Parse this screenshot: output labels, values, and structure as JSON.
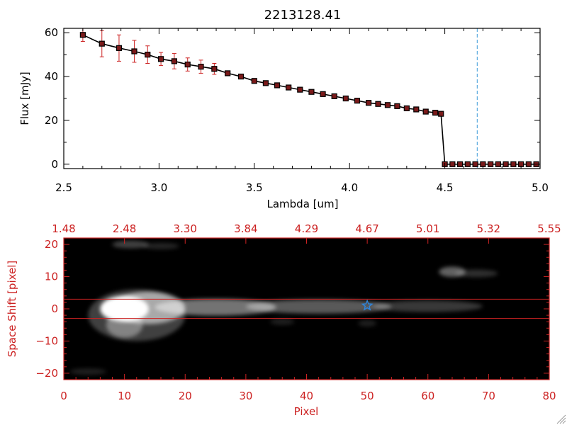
{
  "colors": {
    "red": "#cc2222",
    "black": "#000000",
    "marker": "#7a1a1a",
    "vline": "#3a9ad9",
    "star": "#2e86de",
    "image_bg": "#000000"
  },
  "chart_data": [
    {
      "type": "line",
      "title": "2213128.41",
      "xlabel": "Lambda [um]",
      "ylabel": "Flux [mJy]",
      "xlim": [
        2.5,
        5.0
      ],
      "ylim": [
        -2,
        62
      ],
      "xticks": [
        "2.5",
        "3.0",
        "3.5",
        "4.0",
        "4.5",
        "5.0"
      ],
      "xtick_values": [
        2.5,
        3.0,
        3.5,
        4.0,
        4.5,
        5.0
      ],
      "yticks": [
        "0",
        "20",
        "40",
        "60"
      ],
      "ytick_values": [
        0,
        20,
        40,
        60
      ],
      "vline_x": 4.67,
      "series": [
        {
          "name": "flux",
          "x": [
            2.6,
            2.7,
            2.79,
            2.87,
            2.94,
            3.01,
            3.08,
            3.15,
            3.22,
            3.29,
            3.36,
            3.43,
            3.5,
            3.56,
            3.62,
            3.68,
            3.74,
            3.8,
            3.86,
            3.92,
            3.98,
            4.04,
            4.1,
            4.15,
            4.2,
            4.25,
            4.3,
            4.35,
            4.4,
            4.45,
            4.48,
            4.5,
            4.54,
            4.58,
            4.62,
            4.66,
            4.7,
            4.74,
            4.78,
            4.82,
            4.86,
            4.9,
            4.94,
            4.98
          ],
          "y": [
            59,
            55,
            53,
            51.5,
            50,
            48,
            47,
            45.5,
            44.5,
            43.5,
            41.5,
            40,
            38,
            37,
            36,
            35,
            34,
            33,
            32,
            31,
            30,
            29,
            28,
            27.5,
            27,
            26.5,
            25.5,
            25,
            24,
            23.5,
            23,
            0,
            0,
            0,
            0,
            0,
            0,
            0,
            0,
            0,
            0,
            0,
            0,
            0
          ],
          "yerr": [
            3,
            6,
            6,
            5,
            4,
            3,
            3.5,
            3,
            3,
            2.5,
            1,
            1,
            1,
            1,
            1,
            1,
            1,
            1,
            1,
            1,
            1,
            1,
            1,
            1,
            1,
            1,
            1,
            1,
            1,
            1,
            1,
            0,
            0,
            0,
            0,
            0,
            0,
            0,
            0,
            0,
            0,
            0,
            0,
            0
          ]
        }
      ]
    },
    {
      "type": "heatmap",
      "title": "",
      "xlabel": "Pixel",
      "ylabel": "Space Shift [pixel]",
      "xlim": [
        0,
        80
      ],
      "ylim": [
        -22,
        22
      ],
      "xticks": [
        "0",
        "10",
        "20",
        "30",
        "40",
        "50",
        "60",
        "70",
        "80"
      ],
      "xtick_values": [
        0,
        10,
        20,
        30,
        40,
        50,
        60,
        70,
        80
      ],
      "yticks": [
        "−20",
        "−10",
        "0",
        "10",
        "20"
      ],
      "ytick_values": [
        -20,
        -10,
        0,
        10,
        20
      ],
      "top_ticks": [
        "1.48",
        "2.48",
        "3.30",
        "3.84",
        "4.29",
        "4.67",
        "5.01",
        "5.32",
        "5.55"
      ],
      "top_tick_values": [
        0,
        10,
        20,
        30,
        40,
        50,
        60,
        70,
        80
      ],
      "hlines": [
        3,
        -3
      ],
      "star": {
        "x": 50,
        "y": 1
      },
      "blobs": [
        {
          "x": 10,
          "y": 0,
          "sx": 4,
          "sy": 4,
          "a": 1.0
        },
        {
          "x": 14,
          "y": 0.3,
          "sx": 6,
          "sy": 5,
          "a": 0.55
        },
        {
          "x": 25,
          "y": 0.5,
          "sx": 10,
          "sy": 2.6,
          "a": 0.45
        },
        {
          "x": 42,
          "y": 0.7,
          "sx": 12,
          "sy": 2.2,
          "a": 0.35
        },
        {
          "x": 60,
          "y": 0.8,
          "sx": 9,
          "sy": 1.8,
          "a": 0.22
        },
        {
          "x": 10,
          "y": -5,
          "sx": 3,
          "sy": 4,
          "a": 0.35
        },
        {
          "x": 12,
          "y": -2,
          "sx": 8,
          "sy": 8,
          "a": 0.25
        },
        {
          "x": 64,
          "y": 11.5,
          "sx": 2.2,
          "sy": 1.6,
          "a": 0.38
        },
        {
          "x": 68,
          "y": 11,
          "sx": 3.5,
          "sy": 1.2,
          "a": 0.18
        },
        {
          "x": 11,
          "y": 20,
          "sx": 3,
          "sy": 1.2,
          "a": 0.25
        },
        {
          "x": 16,
          "y": 19.5,
          "sx": 3,
          "sy": 1,
          "a": 0.14
        },
        {
          "x": 4,
          "y": -19.5,
          "sx": 3,
          "sy": 1,
          "a": 0.12
        },
        {
          "x": 36,
          "y": -4,
          "sx": 2,
          "sy": 1,
          "a": 0.12
        },
        {
          "x": 50,
          "y": -4.5,
          "sx": 1.5,
          "sy": 1,
          "a": 0.12
        }
      ]
    }
  ]
}
